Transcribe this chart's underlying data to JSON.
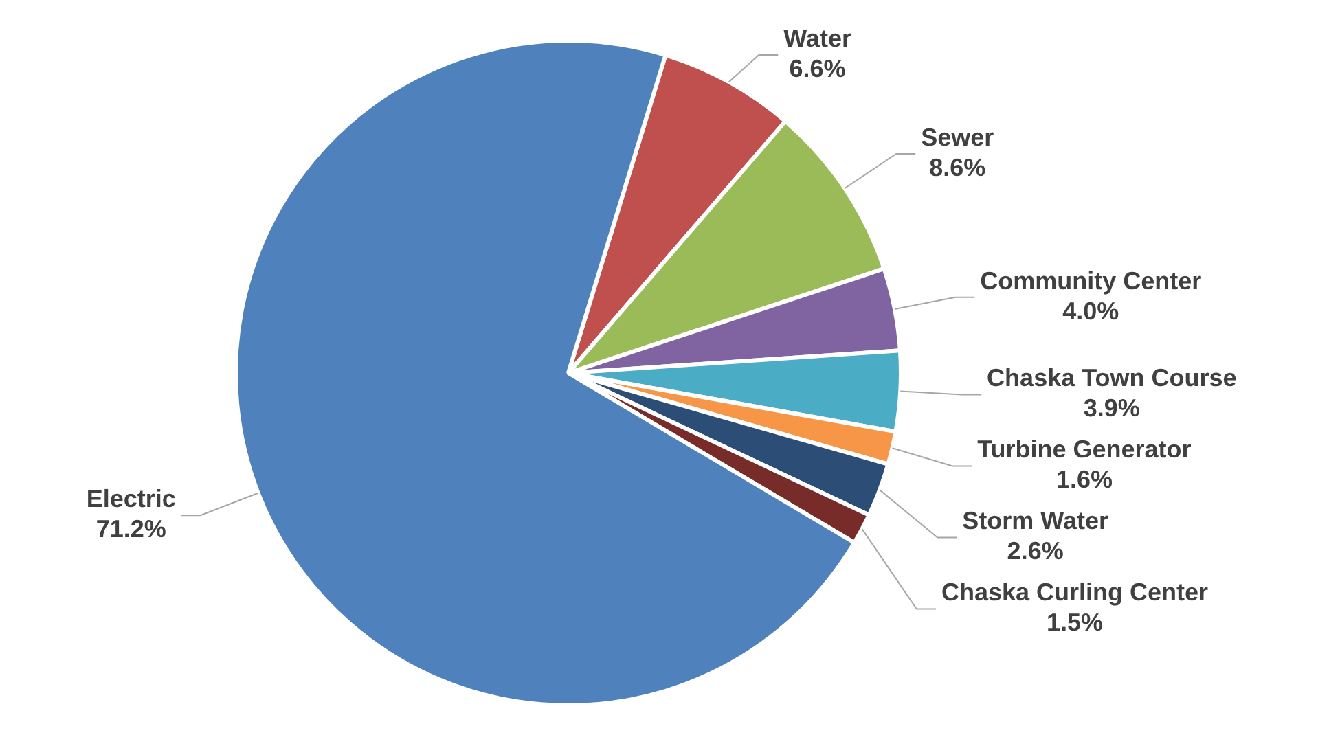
{
  "chart_data": {
    "type": "pie",
    "categories": [
      "Water",
      "Sewer",
      "Community Center",
      "Chaska Town Course",
      "Turbine Generator",
      "Storm Water",
      "Chaska Curling Center",
      "Electric"
    ],
    "values": [
      6.6,
      8.6,
      4.0,
      3.9,
      1.6,
      2.6,
      1.5,
      71.2
    ],
    "value_labels": [
      "6.6%",
      "8.6%",
      "4.0%",
      "3.9%",
      "1.6%",
      "2.6%",
      "1.5%",
      "71.2%"
    ],
    "colors": [
      "#c0504d",
      "#9bbb59",
      "#8064a2",
      "#4bacc6",
      "#f79646",
      "#2c4d75",
      "#772c2a",
      "#4f81bd"
    ],
    "legend": false
  }
}
